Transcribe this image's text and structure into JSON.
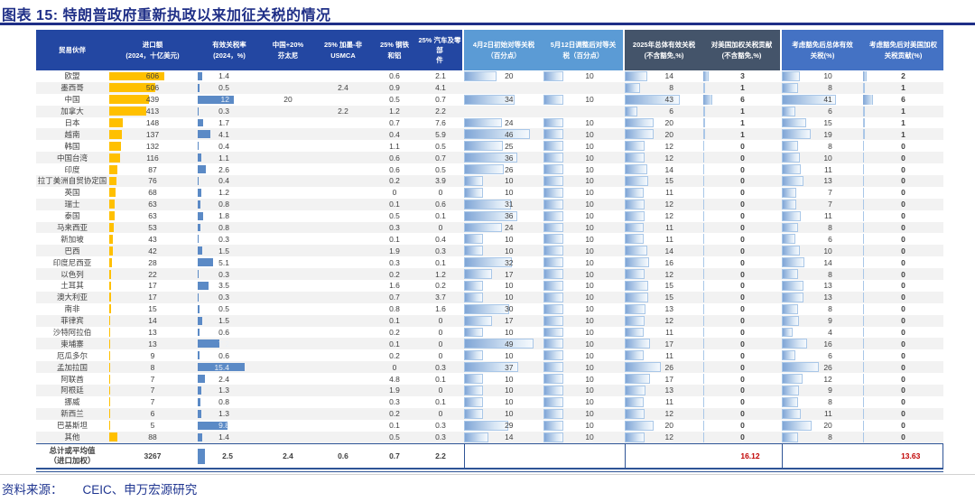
{
  "title": "图表 15: 特朗普政府重新执政以来加征关税的情况",
  "source": {
    "prefix": "资料来源：",
    "text": "CEIC、申万宏源研究"
  },
  "colors": {
    "title_navy": "#1F2F87",
    "header_dark_blue": "#2347A2",
    "header_light_blue": "#5B9BD5",
    "header_slate": "#44546A",
    "header_mid_blue": "#4472C4",
    "bar_orange": "#FFC000",
    "bar_blue": "#5B8AC6",
    "gradient_bar_border": "#A9C7E8",
    "total_red": "#C00000",
    "zebra_gray": "#F2F2F2",
    "table_rule_navy": "#2E5496"
  },
  "chart_data": {
    "type": "table",
    "title": "图表 15: 特朗普政府重新执政以来加征关税的情况",
    "columns": [
      {
        "id": "partner",
        "kind": "label",
        "lines": [
          "贸易伙伴"
        ]
      },
      {
        "id": "imports",
        "kind": "bar_orange",
        "lines": [
          "进口额",
          "(2024，十亿美元)"
        ],
        "max": 606
      },
      {
        "id": "eff_rate",
        "kind": "bar_blue",
        "lines": [
          "有效关税率",
          "(2024，%)"
        ],
        "max": 15.4
      },
      {
        "id": "fentanyl",
        "kind": "plain",
        "lines": [
          "中国+20%",
          "芬太尼"
        ]
      },
      {
        "id": "usmca",
        "kind": "plain",
        "lines": [
          "25% 加墨-非",
          "USMCA"
        ]
      },
      {
        "id": "steel",
        "kind": "plain",
        "lines": [
          "25% 钢铁",
          "和铝"
        ]
      },
      {
        "id": "autos",
        "kind": "plain",
        "lines": [
          "25% 汽车及零部",
          "件"
        ]
      },
      {
        "id": "apr2",
        "kind": "grad",
        "lines": [
          "4月2日初始对等关税",
          "（百分点）"
        ],
        "max": 49
      },
      {
        "id": "may12",
        "kind": "grad",
        "lines": [
          "5月12日调整后对等关",
          "税（百分点）"
        ],
        "max": 49
      },
      {
        "id": "total2025",
        "kind": "grad",
        "lines": [
          "2025年总体有效关税",
          "(不含豁免,%)"
        ],
        "max": 43
      },
      {
        "id": "us_contrib",
        "kind": "tiny",
        "lines": [
          "对美国加权关税贡献",
          "(不含豁免,%)"
        ]
      },
      {
        "id": "exempt_total",
        "kind": "grad",
        "lines": [
          "考虑豁免后总体有效",
          "关税(%)"
        ],
        "max": 43
      },
      {
        "id": "exempt_contrib",
        "kind": "tiny",
        "lines": [
          "考虑豁免后对美国加权",
          "关税贡献(%)"
        ]
      }
    ],
    "rows": [
      [
        "欧盟",
        "606",
        "1.4",
        "",
        "",
        "0.6",
        "2.1",
        "20",
        "10",
        "14",
        "3",
        "10",
        "2"
      ],
      [
        "墨西哥",
        "506",
        "0.5",
        "",
        "2.4",
        "0.9",
        "4.1",
        "",
        "",
        "8",
        "1",
        "8",
        "1"
      ],
      [
        "中国",
        "439",
        "12",
        "20",
        "",
        "0.5",
        "0.7",
        "34",
        "10",
        "43",
        "6",
        "41",
        "6"
      ],
      [
        "加拿大",
        "413",
        "0.3",
        "",
        "2.2",
        "1.2",
        "2.2",
        "",
        "",
        "6",
        "1",
        "6",
        "1"
      ],
      [
        "日本",
        "148",
        "1.7",
        "",
        "",
        "0.7",
        "7.6",
        "24",
        "10",
        "20",
        "1",
        "15",
        "1"
      ],
      [
        "越南",
        "137",
        "4.1",
        "",
        "",
        "0.4",
        "5.9",
        "46",
        "10",
        "20",
        "1",
        "19",
        "1"
      ],
      [
        "韩国",
        "132",
        "0.4",
        "",
        "",
        "1.1",
        "0.5",
        "25",
        "10",
        "12",
        "0",
        "8",
        "0"
      ],
      [
        "中国台湾",
        "116",
        "1.1",
        "",
        "",
        "0.6",
        "0.7",
        "36",
        "10",
        "12",
        "0",
        "10",
        "0"
      ],
      [
        "印度",
        "87",
        "2.6",
        "",
        "",
        "0.6",
        "0.5",
        "26",
        "10",
        "14",
        "0",
        "11",
        "0"
      ],
      [
        "拉丁美洲自贸协定国",
        "76",
        "0.4",
        "",
        "",
        "0.2",
        "3.9",
        "10",
        "10",
        "15",
        "0",
        "13",
        "0"
      ],
      [
        "英国",
        "68",
        "1.2",
        "",
        "",
        "0",
        "0",
        "10",
        "10",
        "11",
        "0",
        "7",
        "0"
      ],
      [
        "瑞士",
        "63",
        "0.8",
        "",
        "",
        "0.1",
        "0.6",
        "31",
        "10",
        "12",
        "0",
        "7",
        "0"
      ],
      [
        "泰国",
        "63",
        "1.8",
        "",
        "",
        "0.5",
        "0.1",
        "36",
        "10",
        "12",
        "0",
        "11",
        "0"
      ],
      [
        "马来西亚",
        "53",
        "0.8",
        "",
        "",
        "0.3",
        "0",
        "24",
        "10",
        "11",
        "0",
        "8",
        "0"
      ],
      [
        "新加坡",
        "43",
        "0.3",
        "",
        "",
        "0.1",
        "0.4",
        "10",
        "10",
        "11",
        "0",
        "6",
        "0"
      ],
      [
        "巴西",
        "42",
        "1.5",
        "",
        "",
        "1.9",
        "0.3",
        "10",
        "10",
        "14",
        "0",
        "10",
        "0"
      ],
      [
        "印度尼西亚",
        "28",
        "5.1",
        "",
        "",
        "0.3",
        "0.1",
        "32",
        "10",
        "16",
        "0",
        "14",
        "0"
      ],
      [
        "以色列",
        "22",
        "0.3",
        "",
        "",
        "0.2",
        "1.2",
        "17",
        "10",
        "12",
        "0",
        "8",
        "0"
      ],
      [
        "土耳其",
        "17",
        "3.5",
        "",
        "",
        "1.6",
        "0.2",
        "10",
        "10",
        "15",
        "0",
        "13",
        "0"
      ],
      [
        "澳大利亚",
        "17",
        "0.3",
        "",
        "",
        "0.7",
        "3.7",
        "10",
        "10",
        "15",
        "0",
        "13",
        "0"
      ],
      [
        "南非",
        "15",
        "0.5",
        "",
        "",
        "0.8",
        "1.6",
        "30",
        "10",
        "13",
        "0",
        "8",
        "0"
      ],
      [
        "菲律宾",
        "14",
        "1.5",
        "",
        "",
        "0.1",
        "0",
        "17",
        "10",
        "12",
        "0",
        "9",
        "0"
      ],
      [
        "沙特阿拉伯",
        "13",
        "0.6",
        "",
        "",
        "0.2",
        "0",
        "10",
        "10",
        "11",
        "0",
        "4",
        "0"
      ],
      [
        "柬埔寨",
        "13",
        "7.2",
        "",
        "",
        "0.1",
        "0",
        "49",
        "10",
        "17",
        "0",
        "16",
        "0"
      ],
      [
        "厄瓜多尔",
        "9",
        "0.6",
        "",
        "",
        "0.2",
        "0",
        "10",
        "10",
        "11",
        "0",
        "6",
        "0"
      ],
      [
        "孟加拉国",
        "8",
        "15.4",
        "",
        "",
        "0",
        "0.3",
        "37",
        "10",
        "26",
        "0",
        "26",
        "0"
      ],
      [
        "阿联酋",
        "7",
        "2.4",
        "",
        "",
        "4.8",
        "0.1",
        "10",
        "10",
        "17",
        "0",
        "12",
        "0"
      ],
      [
        "阿根廷",
        "7",
        "1.3",
        "",
        "",
        "1.9",
        "0",
        "10",
        "10",
        "13",
        "0",
        "9",
        "0"
      ],
      [
        "挪威",
        "7",
        "0.8",
        "",
        "",
        "0.3",
        "0.1",
        "10",
        "10",
        "11",
        "0",
        "8",
        "0"
      ],
      [
        "新西兰",
        "6",
        "1.3",
        "",
        "",
        "0.2",
        "0",
        "10",
        "10",
        "12",
        "0",
        "11",
        "0"
      ],
      [
        "巴基斯坦",
        "5",
        "9.8",
        "",
        "",
        "0.1",
        "0.3",
        "29",
        "10",
        "20",
        "0",
        "20",
        "0"
      ],
      [
        "其他",
        "88",
        "1.4",
        "",
        "",
        "0.5",
        "0.3",
        "14",
        "10",
        "12",
        "0",
        "8",
        "0"
      ]
    ],
    "total_row": {
      "label_lines": [
        "总计或平均值",
        "（进口加权）"
      ],
      "values": [
        "3267",
        "2.5",
        "2.4",
        "0.6",
        "0.7",
        "2.2",
        "",
        "",
        "",
        "16.12",
        "",
        "13.63"
      ]
    }
  }
}
